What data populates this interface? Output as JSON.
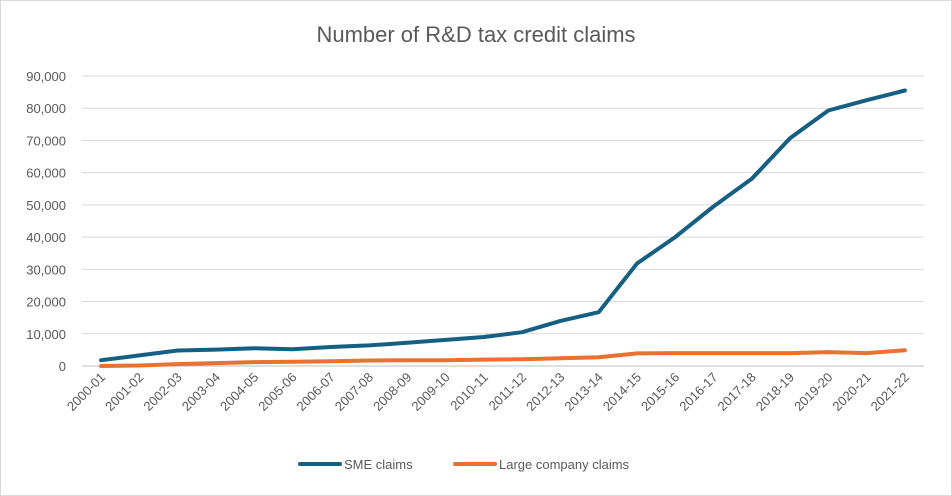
{
  "chart_data": {
    "type": "line",
    "title": "Number of R&D tax credit claims",
    "xlabel": "",
    "ylabel": "",
    "ylim": [
      0,
      90000
    ],
    "yticks": [
      0,
      10000,
      20000,
      30000,
      40000,
      50000,
      60000,
      70000,
      80000,
      90000
    ],
    "ytick_labels": [
      "0",
      "10,000",
      "20,000",
      "30,000",
      "40,000",
      "50,000",
      "60,000",
      "70,000",
      "80,000",
      "90,000"
    ],
    "grid": true,
    "legend_position": "bottom",
    "categories": [
      "2000-01",
      "2001-02",
      "2002-03",
      "2003-04",
      "2004-05",
      "2005-06",
      "2006-07",
      "2007-08",
      "2008-09",
      "2009-10",
      "2010-11",
      "2011-12",
      "2012-13",
      "2013-14",
      "2014-15",
      "2015-16",
      "2016-17",
      "2017-18",
      "2018-19",
      "2019-20",
      "2020-21",
      "2021-22"
    ],
    "series": [
      {
        "name": "SME claims",
        "color": "#156082",
        "values": [
          1800,
          3300,
          4800,
          5100,
          5500,
          5200,
          5900,
          6400,
          7200,
          8100,
          9000,
          10500,
          14000,
          16700,
          31800,
          40000,
          49500,
          58100,
          70700,
          79300,
          82500,
          85500
        ]
      },
      {
        "name": "Large company claims",
        "color": "#E97132",
        "values": [
          0,
          150,
          600,
          900,
          1200,
          1300,
          1500,
          1700,
          1800,
          1800,
          2000,
          2100,
          2400,
          2700,
          3900,
          4000,
          4000,
          4000,
          4000,
          4300,
          4000,
          4900
        ]
      }
    ]
  }
}
